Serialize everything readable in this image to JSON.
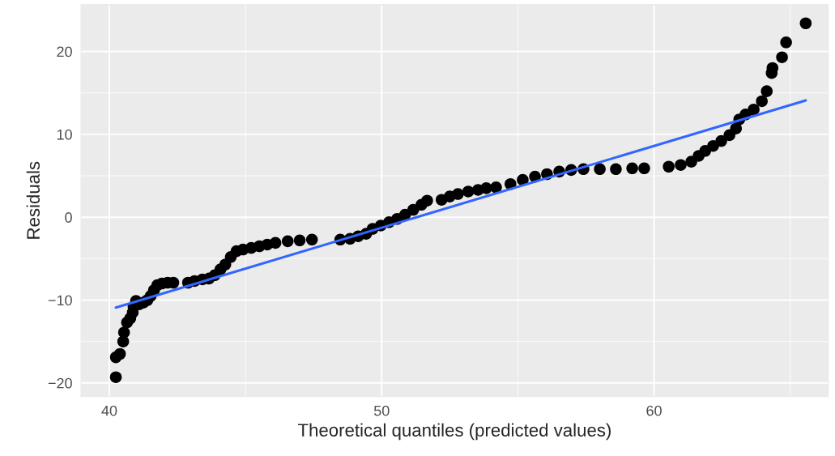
{
  "chart_data": {
    "type": "scatter",
    "xlabel": "Theoretical quantiles (predicted values)",
    "ylabel": "Residuals",
    "xlim": [
      38.96,
      66.4
    ],
    "ylim": [
      -21.66,
      25.66
    ],
    "xticks": [
      40,
      50,
      60
    ],
    "yticks": [
      {
        "value": -20,
        "label": "−20"
      },
      {
        "value": -10,
        "label": "−10"
      },
      0,
      10,
      20
    ],
    "grid": true,
    "legend": false,
    "series": [
      {
        "marker": "circle",
        "color": "#000000",
        "x": [
          40.24,
          40.24,
          40.39,
          40.51,
          40.54,
          40.65,
          40.77,
          40.86,
          40.89,
          40.98,
          41.1,
          41.25,
          41.4,
          41.52,
          41.64,
          41.76,
          41.93,
          42.14,
          42.35,
          42.89,
          43.13,
          43.42,
          43.66,
          43.87,
          44.08,
          44.26,
          44.46,
          44.67,
          44.91,
          45.21,
          45.51,
          45.8,
          46.1,
          46.55,
          46.99,
          47.44,
          48.48,
          48.84,
          49.14,
          49.43,
          49.67,
          49.97,
          50.27,
          50.57,
          50.86,
          51.16,
          51.46,
          51.67,
          52.2,
          52.5,
          52.8,
          53.18,
          53.54,
          53.84,
          54.2,
          54.73,
          55.18,
          55.63,
          56.07,
          56.52,
          56.96,
          57.41,
          58.01,
          58.6,
          59.2,
          59.64,
          60.54,
          60.98,
          61.37,
          61.64,
          61.88,
          62.17,
          62.47,
          62.77,
          63.01,
          63.13,
          63.36,
          63.66,
          63.96,
          64.14,
          64.32,
          64.35,
          64.7,
          64.85,
          65.57
        ],
        "values": [
          -19.3,
          -16.9,
          -16.5,
          -15.0,
          -13.9,
          -12.7,
          -12.2,
          -11.5,
          -10.8,
          -10.1,
          -10.5,
          -10.3,
          -10.0,
          -9.5,
          -8.8,
          -8.2,
          -8.0,
          -7.9,
          -7.9,
          -7.9,
          -7.7,
          -7.5,
          -7.4,
          -7.0,
          -6.3,
          -5.7,
          -4.8,
          -4.1,
          -3.9,
          -3.7,
          -3.5,
          -3.3,
          -3.1,
          -2.9,
          -2.8,
          -2.7,
          -2.7,
          -2.6,
          -2.3,
          -2.0,
          -1.4,
          -1.0,
          -0.6,
          -0.2,
          0.3,
          0.9,
          1.5,
          2.0,
          2.1,
          2.5,
          2.8,
          3.1,
          3.3,
          3.5,
          3.6,
          4.0,
          4.5,
          4.9,
          5.2,
          5.5,
          5.7,
          5.8,
          5.8,
          5.8,
          5.9,
          5.9,
          6.1,
          6.3,
          6.7,
          7.4,
          8.0,
          8.6,
          9.2,
          9.9,
          10.7,
          11.8,
          12.4,
          13.0,
          14.0,
          15.2,
          17.4,
          18.0,
          19.3,
          21.1,
          23.4
        ]
      },
      {
        "type": "line",
        "color": "#3366ff",
        "x": [
          40.24,
          65.57
        ],
        "values": [
          -10.9,
          14.1
        ]
      }
    ]
  }
}
